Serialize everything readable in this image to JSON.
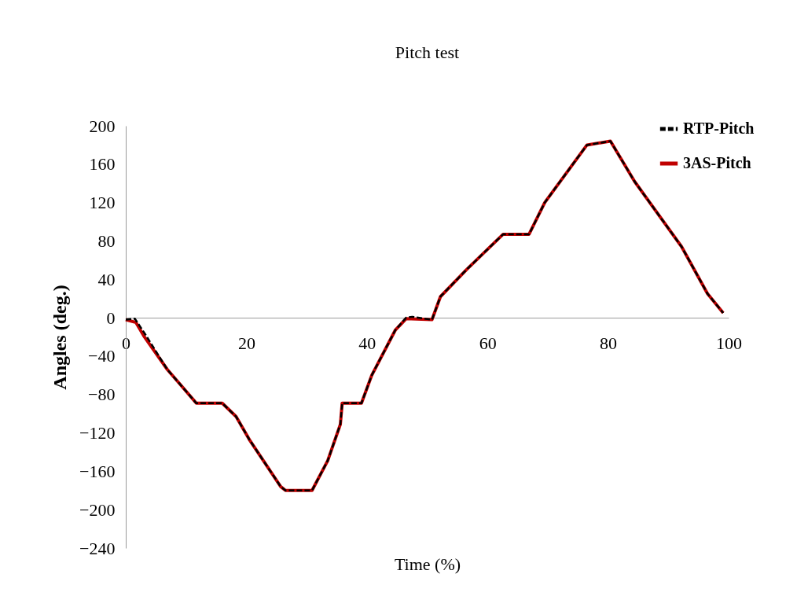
{
  "chart_data": {
    "type": "line",
    "title": "Pitch test",
    "xlabel": "Time (%)",
    "ylabel": "Angles (deg.)",
    "xlim": [
      0,
      100
    ],
    "xticks": [
      0,
      20,
      40,
      60,
      80,
      100
    ],
    "ylim": [
      -240,
      200
    ],
    "yticks": [
      -240,
      -200,
      -160,
      -120,
      -80,
      -40,
      0,
      40,
      80,
      120,
      160,
      200
    ],
    "grid": false,
    "legend": "top right",
    "marker": "none",
    "series": [
      {
        "name": "RTP-Pitch",
        "color": "#000000",
        "line_style": "dashed",
        "x": [
          0,
          1.5,
          3,
          6.9,
          9.1,
          11.7,
          16,
          18.3,
          20.5,
          25.7,
          26.5,
          30.9,
          33.5,
          35.6,
          35.9,
          39.1,
          40.8,
          44.7,
          46.5,
          47.5,
          50.8,
          52.2,
          56.5,
          62.6,
          66.9,
          69.5,
          76.5,
          80.4,
          84.4,
          92.2,
          96.5,
          99.1
        ],
        "values": [
          -2,
          -1,
          -15,
          -54,
          -70,
          -89,
          -89,
          -103,
          -127,
          -176,
          -180,
          -180,
          -149,
          -111,
          -89,
          -89,
          -60,
          -13,
          0,
          1,
          -2,
          22,
          50,
          87,
          87,
          120,
          180,
          184,
          142,
          74,
          25,
          5
        ]
      },
      {
        "name": "3AS-Pitch",
        "color": "#c00000",
        "line_style": "solid",
        "x": [
          0,
          1.7,
          3,
          6.9,
          9.1,
          11.7,
          16,
          18.3,
          20.5,
          25.7,
          26.5,
          30.9,
          33.5,
          35.6,
          35.9,
          39.1,
          40.8,
          44.7,
          46.5,
          50.8,
          52.2,
          56.5,
          62.6,
          66.9,
          69.5,
          76.5,
          80.4,
          84.4,
          92.2,
          96.5,
          99.1
        ],
        "values": [
          -2,
          -5,
          -19,
          -54,
          -70,
          -89,
          -89,
          -103,
          -127,
          -176,
          -180,
          -180,
          -149,
          -111,
          -89,
          -89,
          -60,
          -13,
          -1,
          -2,
          22,
          50,
          87,
          87,
          120,
          180,
          184,
          142,
          74,
          25,
          5
        ]
      }
    ]
  }
}
